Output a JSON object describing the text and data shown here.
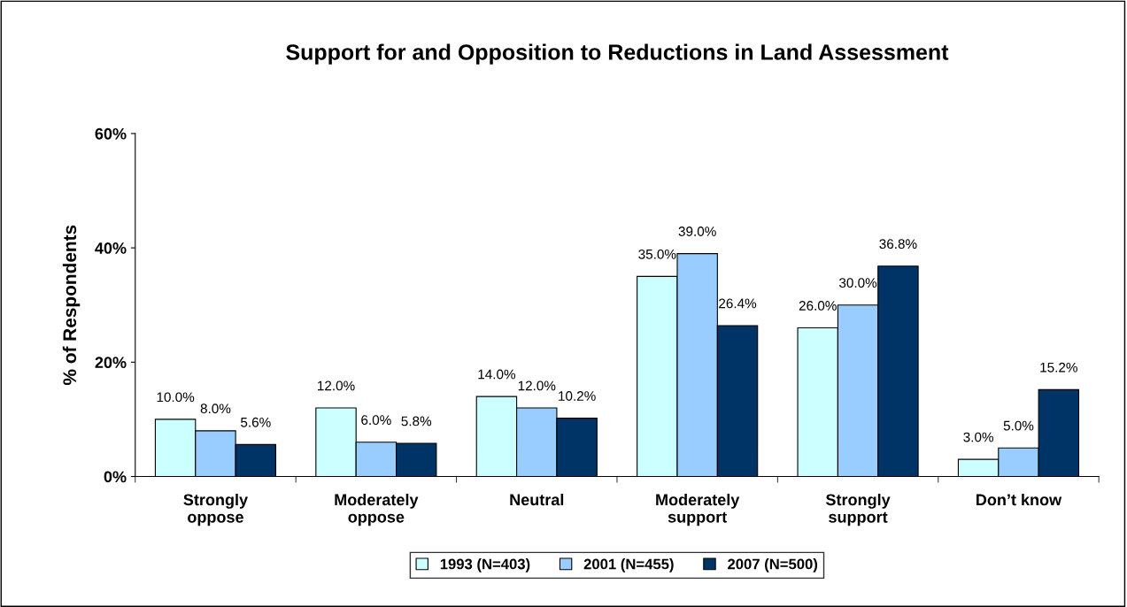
{
  "chart_data": {
    "type": "bar",
    "title": "Support for and Opposition to Reductions in Land Assessment",
    "ylabel": "% of Respondents",
    "categories": [
      "Strongly\noppose",
      "Moderately\noppose",
      "Neutral",
      "Moderately\nsupport",
      "Strongly\nsupport",
      "Don’t know"
    ],
    "series": [
      {
        "name": "1993 (N=403)",
        "color": "#ccffff",
        "values": [
          10.0,
          12.0,
          14.0,
          35.0,
          26.0,
          3.0
        ],
        "value_labels": [
          "10.0%",
          "12.0%",
          "14.0%",
          "35.0%",
          "26.0%",
          "3.0%"
        ]
      },
      {
        "name": "2001 (N=455)",
        "color": "#99ccff",
        "values": [
          8.0,
          6.0,
          12.0,
          39.0,
          30.0,
          5.0
        ],
        "value_labels": [
          "8.0%",
          "6.0%",
          "12.0%",
          "39.0%",
          "30.0%",
          "5.0%"
        ]
      },
      {
        "name": "2007 (N=500)",
        "color": "#003366",
        "values": [
          5.6,
          5.8,
          10.2,
          26.4,
          36.8,
          15.2
        ],
        "value_labels": [
          "5.6%",
          "5.8%",
          "10.2%",
          "26.4%",
          "36.8%",
          "15.2%"
        ]
      }
    ],
    "ylim": [
      0,
      60
    ],
    "yticks": [
      {
        "value": 0,
        "label": "0%"
      },
      {
        "value": 20,
        "label": "20%"
      },
      {
        "value": 40,
        "label": "40%"
      },
      {
        "value": 60,
        "label": "60%"
      }
    ],
    "grid": false,
    "legend": "bottom"
  }
}
